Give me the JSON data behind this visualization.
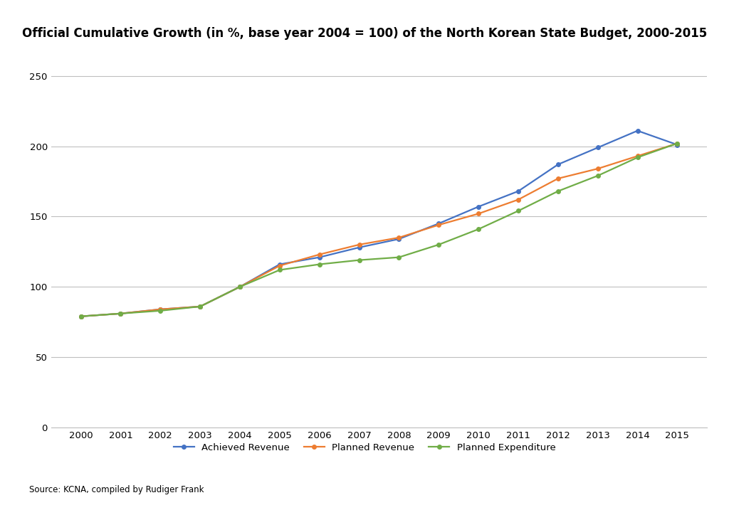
{
  "years": [
    2000,
    2001,
    2002,
    2003,
    2004,
    2005,
    2006,
    2007,
    2008,
    2009,
    2010,
    2011,
    2012,
    2013,
    2014,
    2015
  ],
  "achieved_revenue": [
    79,
    81,
    84,
    86,
    100,
    116,
    121,
    128,
    134,
    145,
    157,
    168,
    187,
    199,
    211,
    201
  ],
  "planned_revenue": [
    79,
    81,
    84,
    86,
    100,
    115,
    123,
    130,
    135,
    144,
    152,
    162,
    177,
    184,
    193,
    202
  ],
  "planned_expenditure": [
    79,
    81,
    83,
    86,
    100,
    112,
    116,
    119,
    121,
    130,
    141,
    154,
    168,
    179,
    192,
    202
  ],
  "title": "Official Cumulative Growth (in %, base year 2004 = 100) of the North Korean State Budget, 2000-2015",
  "legend_labels": [
    "Achieved Revenue",
    "Planned Revenue",
    "Planned Expenditure"
  ],
  "colors": [
    "#4472C4",
    "#ED7D31",
    "#70AD47"
  ],
  "marker": "o",
  "marker_size": 4,
  "line_width": 1.6,
  "ylim": [
    0,
    260
  ],
  "yticks": [
    0,
    50,
    100,
    150,
    200,
    250
  ],
  "xlabel": "",
  "ylabel": "",
  "source_text": "Source: KCNA, compiled by Rudiger Frank",
  "background_color": "#FFFFFF",
  "grid_color": "#BFBFBF",
  "title_fontsize": 12,
  "legend_fontsize": 9.5,
  "tick_fontsize": 9.5,
  "source_fontsize": 8.5
}
